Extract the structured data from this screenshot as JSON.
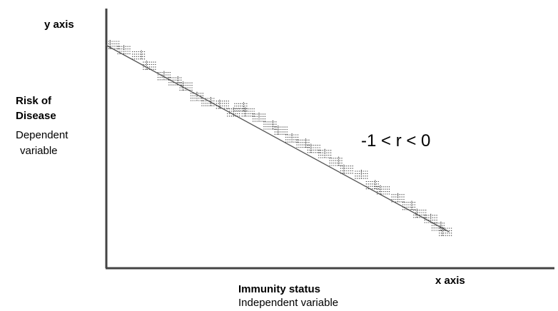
{
  "chart_data": {
    "type": "scatter",
    "title": "",
    "xlabel": "x axis",
    "ylabel": "y axis",
    "xlabel_lines": [
      "Immunity status",
      "Independent variable"
    ],
    "ylabel_lines": [
      "Risk of",
      "Disease",
      "Dependent",
      "variable"
    ],
    "annotation": "-1 < r < 0",
    "ticks": false,
    "grid": false,
    "trend_line": {
      "from": [
        0.0,
        0.86
      ],
      "to": [
        0.94,
        0.14
      ]
    },
    "points": [
      {
        "x": 0.02,
        "y": 0.86
      },
      {
        "x": 0.05,
        "y": 0.84
      },
      {
        "x": 0.09,
        "y": 0.82
      },
      {
        "x": 0.12,
        "y": 0.78
      },
      {
        "x": 0.16,
        "y": 0.74
      },
      {
        "x": 0.19,
        "y": 0.72
      },
      {
        "x": 0.22,
        "y": 0.7
      },
      {
        "x": 0.25,
        "y": 0.66
      },
      {
        "x": 0.28,
        "y": 0.64
      },
      {
        "x": 0.32,
        "y": 0.63
      },
      {
        "x": 0.35,
        "y": 0.6
      },
      {
        "x": 0.37,
        "y": 0.62
      },
      {
        "x": 0.39,
        "y": 0.6
      },
      {
        "x": 0.42,
        "y": 0.58
      },
      {
        "x": 0.45,
        "y": 0.55
      },
      {
        "x": 0.48,
        "y": 0.53
      },
      {
        "x": 0.51,
        "y": 0.5
      },
      {
        "x": 0.54,
        "y": 0.48
      },
      {
        "x": 0.57,
        "y": 0.46
      },
      {
        "x": 0.6,
        "y": 0.44
      },
      {
        "x": 0.63,
        "y": 0.41
      },
      {
        "x": 0.66,
        "y": 0.38
      },
      {
        "x": 0.7,
        "y": 0.36
      },
      {
        "x": 0.73,
        "y": 0.32
      },
      {
        "x": 0.76,
        "y": 0.3
      },
      {
        "x": 0.8,
        "y": 0.27
      },
      {
        "x": 0.83,
        "y": 0.24
      },
      {
        "x": 0.86,
        "y": 0.21
      },
      {
        "x": 0.89,
        "y": 0.19
      },
      {
        "x": 0.91,
        "y": 0.16
      },
      {
        "x": 0.93,
        "y": 0.14
      }
    ]
  }
}
